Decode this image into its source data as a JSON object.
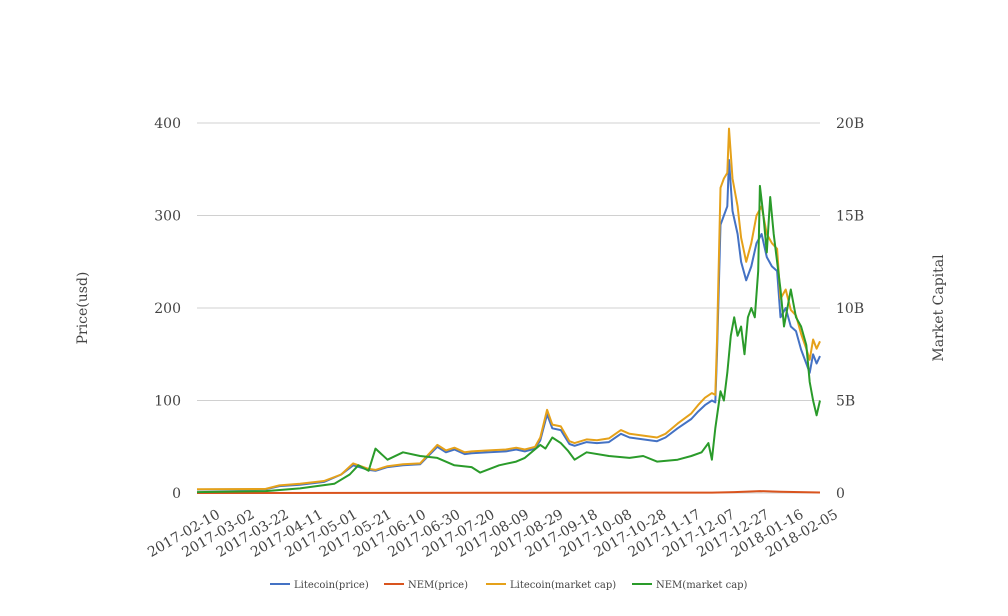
{
  "chart_data": {
    "type": "line",
    "title": "",
    "ylabel_left": "Price(usd)",
    "ylabel_right": "Market Capital",
    "x_range": [
      "2017-02-10",
      "2018-02-08"
    ],
    "ylim_left": [
      0,
      400
    ],
    "ylim_right": [
      0,
      20000000000
    ],
    "y_ticks_left": [
      "0",
      "100",
      "200",
      "300",
      "400"
    ],
    "y_ticks_right": [
      "0",
      "5B",
      "10B",
      "15B",
      "20B"
    ],
    "x_ticks": [
      "2017-02-10",
      "2017-03-02",
      "2017-03-22",
      "2017-04-11",
      "2017-05-01",
      "2017-05-21",
      "2017-06-10",
      "2017-06-30",
      "2017-07-20",
      "2017-08-09",
      "2017-08-29",
      "2017-09-18",
      "2017-10-08",
      "2017-10-28",
      "2017-11-17",
      "2017-12-07",
      "2017-12-27",
      "2018-01-16",
      "2018-02-05"
    ],
    "grid": true,
    "legend_position": "bottom",
    "series": [
      {
        "name": "Litecoin(price)",
        "axis": "left",
        "color": "#4472c4",
        "x": [
          "2017-02-10",
          "2017-03-02",
          "2017-03-22",
          "2017-03-30",
          "2017-04-11",
          "2017-04-25",
          "2017-05-05",
          "2017-05-12",
          "2017-05-21",
          "2017-05-25",
          "2017-06-01",
          "2017-06-10",
          "2017-06-20",
          "2017-06-30",
          "2017-07-05",
          "2017-07-10",
          "2017-07-16",
          "2017-07-20",
          "2017-07-30",
          "2017-08-09",
          "2017-08-15",
          "2017-08-20",
          "2017-08-26",
          "2017-08-29",
          "2017-09-02",
          "2017-09-05",
          "2017-09-10",
          "2017-09-15",
          "2017-09-18",
          "2017-09-25",
          "2017-10-01",
          "2017-10-08",
          "2017-10-15",
          "2017-10-20",
          "2017-10-28",
          "2017-11-05",
          "2017-11-10",
          "2017-11-17",
          "2017-11-25",
          "2017-11-29",
          "2017-12-03",
          "2017-12-07",
          "2017-12-09",
          "2017-12-10",
          "2017-12-12",
          "2017-12-14",
          "2017-12-16",
          "2017-12-17",
          "2017-12-19",
          "2017-12-22",
          "2017-12-24",
          "2017-12-27",
          "2017-12-30",
          "2018-01-02",
          "2018-01-05",
          "2018-01-08",
          "2018-01-11",
          "2018-01-14",
          "2018-01-16",
          "2018-01-19",
          "2018-01-22",
          "2018-01-25",
          "2018-01-28",
          "2018-01-31",
          "2018-02-02",
          "2018-02-04",
          "2018-02-06",
          "2018-02-08"
        ],
        "values": [
          3.8,
          3.9,
          4.0,
          7.5,
          9.0,
          12.0,
          20.0,
          30.0,
          25.0,
          24.0,
          28.0,
          30.0,
          31.0,
          50.0,
          44.0,
          47.0,
          42.0,
          43.0,
          44.0,
          45.0,
          47.0,
          45.0,
          48.0,
          57.0,
          85.0,
          70.0,
          68.0,
          53.0,
          51.0,
          55.0,
          54.0,
          55.0,
          64.0,
          60.0,
          58.0,
          56.0,
          60.0,
          70.0,
          80.0,
          88.0,
          95.0,
          100.0,
          98.0,
          150.0,
          290.0,
          300.0,
          310.0,
          360.0,
          305.0,
          280.0,
          250.0,
          230.0,
          245.0,
          270.0,
          280.0,
          255.0,
          245.0,
          240.0,
          190.0,
          200.0,
          180.0,
          175.0,
          155.0,
          140.0,
          130.0,
          150.0,
          140.0,
          148.0
        ]
      },
      {
        "name": "NEM(price)",
        "axis": "left",
        "color": "#d9541e",
        "x": [
          "2017-02-10",
          "2017-05-21",
          "2017-08-29",
          "2017-12-07",
          "2017-12-20",
          "2018-01-04",
          "2018-01-16",
          "2018-02-08"
        ],
        "values": [
          0.004,
          0.15,
          0.3,
          0.4,
          1.0,
          2.0,
          1.4,
          0.5
        ]
      },
      {
        "name": "Litecoin(market cap)",
        "axis": "right",
        "color": "#e5a11a",
        "x": [
          "2017-02-10",
          "2017-03-02",
          "2017-03-22",
          "2017-03-30",
          "2017-04-11",
          "2017-04-25",
          "2017-05-05",
          "2017-05-12",
          "2017-05-21",
          "2017-05-25",
          "2017-06-01",
          "2017-06-10",
          "2017-06-20",
          "2017-06-30",
          "2017-07-05",
          "2017-07-10",
          "2017-07-16",
          "2017-07-20",
          "2017-07-30",
          "2017-08-09",
          "2017-08-15",
          "2017-08-20",
          "2017-08-26",
          "2017-08-29",
          "2017-09-02",
          "2017-09-05",
          "2017-09-10",
          "2017-09-15",
          "2017-09-18",
          "2017-09-25",
          "2017-10-01",
          "2017-10-08",
          "2017-10-15",
          "2017-10-20",
          "2017-10-28",
          "2017-11-05",
          "2017-11-10",
          "2017-11-17",
          "2017-11-25",
          "2017-11-29",
          "2017-12-03",
          "2017-12-07",
          "2017-12-09",
          "2017-12-10",
          "2017-12-12",
          "2017-12-14",
          "2017-12-16",
          "2017-12-17",
          "2017-12-19",
          "2017-12-22",
          "2017-12-24",
          "2017-12-27",
          "2017-12-30",
          "2018-01-02",
          "2018-01-05",
          "2018-01-08",
          "2018-01-11",
          "2018-01-14",
          "2018-01-16",
          "2018-01-19",
          "2018-01-22",
          "2018-01-25",
          "2018-01-28",
          "2018-01-31",
          "2018-02-02",
          "2018-02-04",
          "2018-02-06",
          "2018-02-08"
        ],
        "values": [
          200000000,
          210000000,
          220000000,
          410000000,
          500000000,
          650000000,
          1000000000,
          1600000000,
          1300000000,
          1250000000,
          1450000000,
          1550000000,
          1600000000,
          2600000000,
          2300000000,
          2450000000,
          2200000000,
          2250000000,
          2300000000,
          2350000000,
          2450000000,
          2350000000,
          2500000000,
          3000000000,
          4500000000,
          3700000000,
          3600000000,
          2800000000,
          2700000000,
          2900000000,
          2850000000,
          2950000000,
          3400000000,
          3200000000,
          3100000000,
          3000000000,
          3200000000,
          3750000000,
          4300000000,
          4750000000,
          5150000000,
          5400000000,
          5300000000,
          8200000000,
          16500000000,
          17000000000,
          17300000000,
          19700000000,
          17000000000,
          15500000000,
          13800000000,
          12500000000,
          13500000000,
          15000000000,
          15500000000,
          14000000000,
          13500000000,
          13200000000,
          10500000000,
          11000000000,
          9900000000,
          9600000000,
          8600000000,
          7800000000,
          7200000000,
          8300000000,
          7800000000,
          8200000000
        ]
      },
      {
        "name": "NEM(market cap)",
        "axis": "right",
        "color": "#2a9b2a",
        "x": [
          "2017-02-10",
          "2017-03-22",
          "2017-04-11",
          "2017-05-01",
          "2017-05-10",
          "2017-05-15",
          "2017-05-21",
          "2017-05-25",
          "2017-06-01",
          "2017-06-10",
          "2017-06-20",
          "2017-06-30",
          "2017-07-10",
          "2017-07-20",
          "2017-07-25",
          "2017-08-05",
          "2017-08-15",
          "2017-08-20",
          "2017-08-29",
          "2017-09-01",
          "2017-09-05",
          "2017-09-10",
          "2017-09-14",
          "2017-09-18",
          "2017-09-25",
          "2017-10-08",
          "2017-10-20",
          "2017-10-28",
          "2017-11-05",
          "2017-11-17",
          "2017-11-25",
          "2017-12-01",
          "2017-12-05",
          "2017-12-07",
          "2017-12-09",
          "2017-12-12",
          "2017-12-14",
          "2017-12-16",
          "2017-12-18",
          "2017-12-20",
          "2017-12-22",
          "2017-12-24",
          "2017-12-26",
          "2017-12-28",
          "2017-12-30",
          "2018-01-01",
          "2018-01-03",
          "2018-01-04",
          "2018-01-06",
          "2018-01-08",
          "2018-01-10",
          "2018-01-12",
          "2018-01-14",
          "2018-01-16",
          "2018-01-18",
          "2018-01-20",
          "2018-01-22",
          "2018-01-25",
          "2018-01-28",
          "2018-01-31",
          "2018-02-02",
          "2018-02-04",
          "2018-02-06",
          "2018-02-08"
        ],
        "values": [
          50000000,
          100000000,
          250000000,
          500000000,
          1000000000,
          1500000000,
          1200000000,
          2400000000,
          1800000000,
          2200000000,
          2000000000,
          1900000000,
          1500000000,
          1400000000,
          1100000000,
          1500000000,
          1700000000,
          1900000000,
          2600000000,
          2400000000,
          3000000000,
          2700000000,
          2300000000,
          1800000000,
          2200000000,
          2000000000,
          1900000000,
          2000000000,
          1700000000,
          1800000000,
          2000000000,
          2200000000,
          2700000000,
          1800000000,
          3500000000,
          5500000000,
          5000000000,
          6500000000,
          8500000000,
          9500000000,
          8500000000,
          9000000000,
          7500000000,
          9500000000,
          10000000000,
          9500000000,
          12000000000,
          16600000000,
          15000000000,
          13000000000,
          16000000000,
          14000000000,
          12500000000,
          11000000000,
          9000000000,
          10000000000,
          11000000000,
          9500000000,
          9000000000,
          8000000000,
          6000000000,
          5000000000,
          4200000000,
          5000000000
        ]
      }
    ]
  }
}
